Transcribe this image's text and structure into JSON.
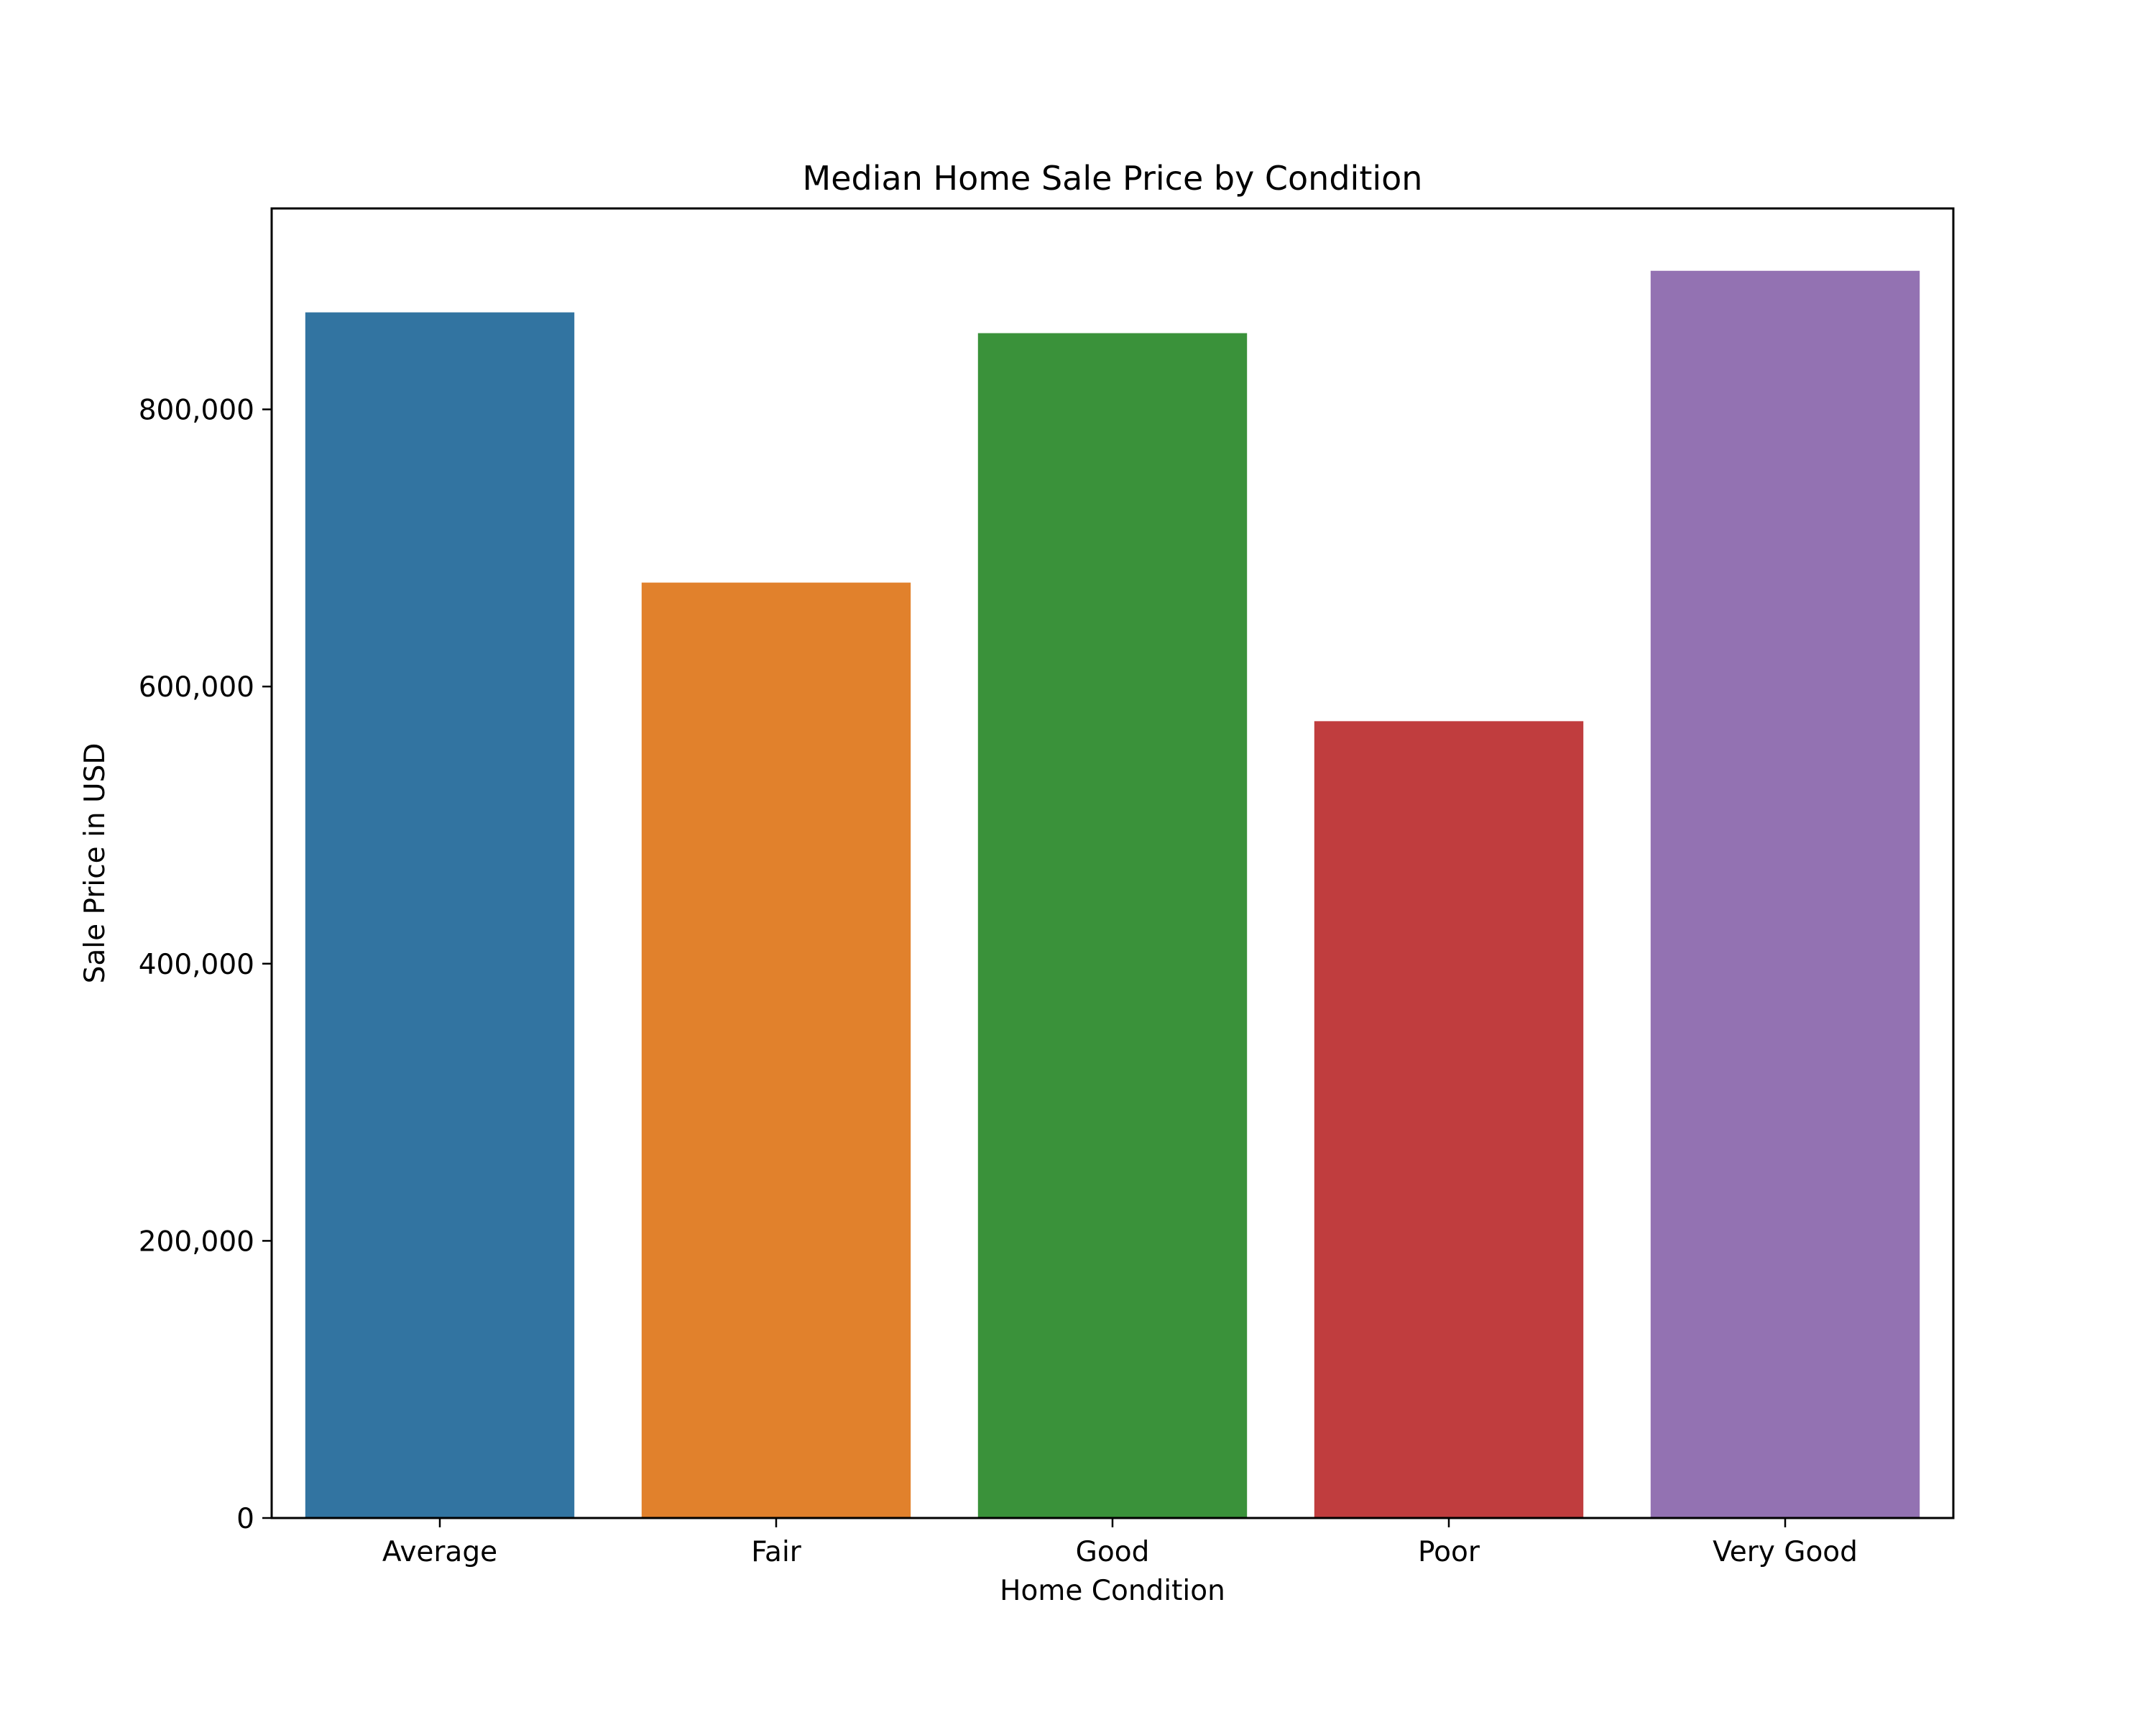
{
  "chart_data": {
    "type": "bar",
    "title": "Median Home Sale Price by Condition",
    "xlabel": "Home Condition",
    "ylabel": "Sale Price in USD",
    "categories": [
      "Average",
      "Fair",
      "Good",
      "Poor",
      "Very Good"
    ],
    "values": [
      870000,
      675000,
      855000,
      575000,
      900000
    ],
    "colors": [
      "#3274a1",
      "#e1812c",
      "#3a923a",
      "#c03d3e",
      "#9372b2"
    ],
    "ylim": [
      0,
      945000
    ],
    "yticks": [
      0,
      200000,
      400000,
      600000,
      800000
    ],
    "ytick_labels": [
      "0",
      "200,000",
      "400,000",
      "600,000",
      "800,000"
    ],
    "grid": false,
    "legend": "none"
  }
}
